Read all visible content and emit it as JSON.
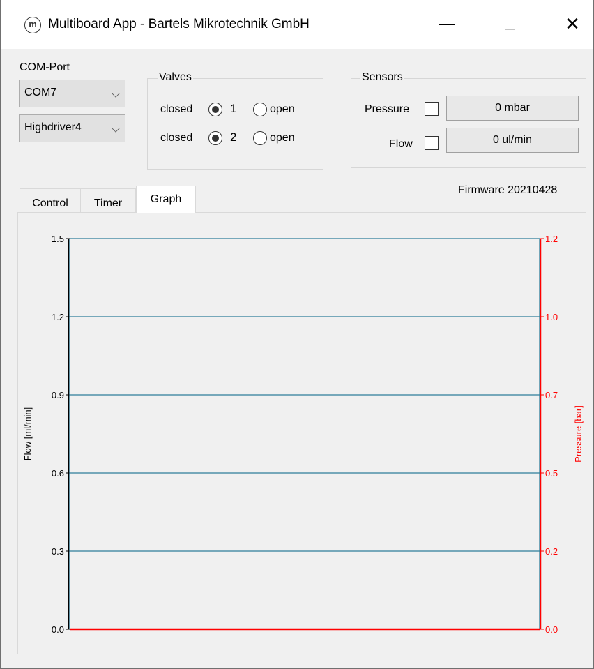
{
  "window": {
    "title": "Multiboard App - Bartels Mikrotechnik GmbH",
    "icon": "m-logo-icon",
    "controls": {
      "minimize": "—",
      "maximize": "",
      "close": "✕"
    }
  },
  "com": {
    "label": "COM-Port",
    "port": "COM7",
    "driver": "Highdriver4"
  },
  "valves": {
    "title": "Valves",
    "rows": [
      {
        "closed_label": "closed",
        "number": "1",
        "open_label": "open",
        "state": "closed"
      },
      {
        "closed_label": "closed",
        "number": "2",
        "open_label": "open",
        "state": "closed"
      }
    ]
  },
  "sensors": {
    "title": "Sensors",
    "pressure_label": "Pressure",
    "pressure_value": "0 mbar",
    "pressure_checked": false,
    "flow_label": "Flow",
    "flow_value": "0 ul/min",
    "flow_checked": false
  },
  "firmware": "Firmware 20210428",
  "tabs": [
    {
      "label": "Control",
      "active": false
    },
    {
      "label": "Timer",
      "active": false
    },
    {
      "label": "Graph",
      "active": true
    }
  ],
  "chart_data": {
    "type": "line",
    "title": "",
    "xlabel": "",
    "ylabel": "Flow [ml/min]",
    "y2label": "Pressure [bar]",
    "ylim": [
      0,
      1.5
    ],
    "y2lim": [
      0,
      1.2
    ],
    "yticks": [
      "0.0",
      "0.3",
      "0.6",
      "0.9",
      "1.2",
      "1.5"
    ],
    "y2ticks": [
      "0.0",
      "0.2",
      "0.5",
      "0.7",
      "1.0",
      "1.2"
    ],
    "grid": true,
    "colors": {
      "flow": "#2e7d9a",
      "pressure": "#ff0000",
      "axis_left": "#000000"
    },
    "series": [
      {
        "axis": "right",
        "x": [
          0,
          1
        ],
        "values": [
          0,
          0
        ]
      }
    ]
  }
}
